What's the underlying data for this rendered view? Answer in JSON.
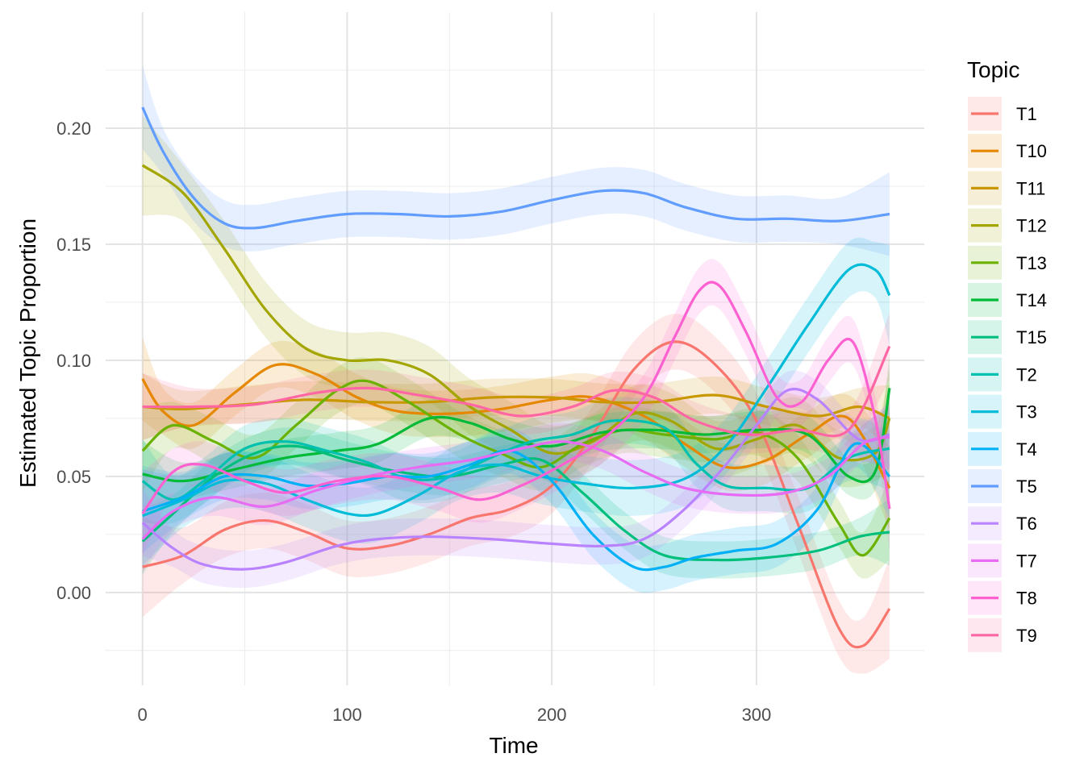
{
  "chart_data": {
    "type": "line",
    "xlabel": "Time",
    "ylabel": "Estimated Topic Proportion",
    "xlim": [
      -18,
      382
    ],
    "ylim": [
      -0.04,
      0.25
    ],
    "x_ticks": [
      0,
      100,
      200,
      300
    ],
    "x_tick_labels": [
      "0",
      "100",
      "200",
      "300"
    ],
    "y_ticks": [
      0.0,
      0.05,
      0.1,
      0.15,
      0.2
    ],
    "y_tick_labels": [
      "0.00",
      "0.05",
      "0.10",
      "0.15",
      "0.20"
    ],
    "grid": true,
    "legend": {
      "title": "Topic",
      "position": "right"
    },
    "band_opacity": 0.16,
    "series": [
      {
        "name": "T1",
        "color": "#F8766D",
        "band": 0.012,
        "points": [
          [
            0,
            0.011
          ],
          [
            20,
            0.016
          ],
          [
            40,
            0.027
          ],
          [
            60,
            0.031
          ],
          [
            80,
            0.026
          ],
          [
            100,
            0.019
          ],
          [
            120,
            0.02
          ],
          [
            140,
            0.025
          ],
          [
            160,
            0.032
          ],
          [
            180,
            0.036
          ],
          [
            200,
            0.046
          ],
          [
            220,
            0.068
          ],
          [
            240,
            0.096
          ],
          [
            260,
            0.108
          ],
          [
            280,
            0.098
          ],
          [
            300,
            0.074
          ],
          [
            320,
            0.03
          ],
          [
            340,
            -0.015
          ],
          [
            352,
            -0.023
          ],
          [
            365,
            -0.007
          ]
        ]
      },
      {
        "name": "T10",
        "color": "#E58700",
        "band": 0.01,
        "points": [
          [
            0,
            0.092
          ],
          [
            10,
            0.078
          ],
          [
            25,
            0.072
          ],
          [
            45,
            0.086
          ],
          [
            65,
            0.098
          ],
          [
            85,
            0.094
          ],
          [
            105,
            0.084
          ],
          [
            125,
            0.078
          ],
          [
            150,
            0.077
          ],
          [
            175,
            0.079
          ],
          [
            200,
            0.083
          ],
          [
            220,
            0.084
          ],
          [
            245,
            0.076
          ],
          [
            265,
            0.064
          ],
          [
            285,
            0.054
          ],
          [
            305,
            0.057
          ],
          [
            325,
            0.068
          ],
          [
            345,
            0.075
          ],
          [
            365,
            0.045
          ]
        ]
      },
      {
        "name": "T11",
        "color": "#C99800",
        "band": 0.008,
        "points": [
          [
            0,
            0.08
          ],
          [
            20,
            0.079
          ],
          [
            50,
            0.081
          ],
          [
            80,
            0.083
          ],
          [
            110,
            0.082
          ],
          [
            140,
            0.082
          ],
          [
            170,
            0.084
          ],
          [
            200,
            0.084
          ],
          [
            225,
            0.082
          ],
          [
            250,
            0.082
          ],
          [
            280,
            0.085
          ],
          [
            305,
            0.08
          ],
          [
            330,
            0.076
          ],
          [
            350,
            0.08
          ],
          [
            365,
            0.075
          ]
        ]
      },
      {
        "name": "T12",
        "color": "#A3A500",
        "band": 0.012,
        "points": [
          [
            0,
            0.184
          ],
          [
            20,
            0.172
          ],
          [
            40,
            0.148
          ],
          [
            60,
            0.122
          ],
          [
            80,
            0.105
          ],
          [
            100,
            0.1
          ],
          [
            120,
            0.1
          ],
          [
            140,
            0.094
          ],
          [
            160,
            0.08
          ],
          [
            180,
            0.07
          ],
          [
            200,
            0.06
          ],
          [
            220,
            0.065
          ],
          [
            240,
            0.077
          ],
          [
            258,
            0.074
          ],
          [
            280,
            0.062
          ],
          [
            300,
            0.066
          ],
          [
            320,
            0.072
          ],
          [
            340,
            0.058
          ],
          [
            358,
            0.06
          ],
          [
            365,
            0.075
          ]
        ]
      },
      {
        "name": "T13",
        "color": "#6BB100",
        "band": 0.01,
        "points": [
          [
            0,
            0.061
          ],
          [
            15,
            0.072
          ],
          [
            35,
            0.065
          ],
          [
            55,
            0.058
          ],
          [
            75,
            0.072
          ],
          [
            95,
            0.087
          ],
          [
            110,
            0.091
          ],
          [
            130,
            0.082
          ],
          [
            155,
            0.068
          ],
          [
            175,
            0.06
          ],
          [
            195,
            0.054
          ],
          [
            215,
            0.064
          ],
          [
            235,
            0.07
          ],
          [
            255,
            0.068
          ],
          [
            280,
            0.066
          ],
          [
            300,
            0.069
          ],
          [
            320,
            0.058
          ],
          [
            340,
            0.03
          ],
          [
            352,
            0.016
          ],
          [
            365,
            0.032
          ]
        ]
      },
      {
        "name": "T14",
        "color": "#00BA38",
        "band": 0.008,
        "points": [
          [
            0,
            0.051
          ],
          [
            20,
            0.048
          ],
          [
            45,
            0.053
          ],
          [
            70,
            0.058
          ],
          [
            95,
            0.061
          ],
          [
            115,
            0.064
          ],
          [
            140,
            0.075
          ],
          [
            160,
            0.073
          ],
          [
            180,
            0.066
          ],
          [
            200,
            0.063
          ],
          [
            225,
            0.069
          ],
          [
            250,
            0.07
          ],
          [
            275,
            0.068
          ],
          [
            300,
            0.07
          ],
          [
            325,
            0.068
          ],
          [
            345,
            0.05
          ],
          [
            358,
            0.052
          ],
          [
            365,
            0.088
          ]
        ]
      },
      {
        "name": "T15",
        "color": "#00BF7D",
        "band": 0.008,
        "points": [
          [
            0,
            0.022
          ],
          [
            15,
            0.034
          ],
          [
            35,
            0.05
          ],
          [
            55,
            0.06
          ],
          [
            75,
            0.063
          ],
          [
            100,
            0.057
          ],
          [
            125,
            0.052
          ],
          [
            150,
            0.05
          ],
          [
            175,
            0.055
          ],
          [
            195,
            0.057
          ],
          [
            215,
            0.043
          ],
          [
            235,
            0.027
          ],
          [
            255,
            0.016
          ],
          [
            280,
            0.014
          ],
          [
            305,
            0.015
          ],
          [
            330,
            0.018
          ],
          [
            350,
            0.024
          ],
          [
            365,
            0.026
          ]
        ]
      },
      {
        "name": "T2",
        "color": "#00C0AF",
        "band": 0.01,
        "points": [
          [
            0,
            0.048
          ],
          [
            15,
            0.04
          ],
          [
            30,
            0.048
          ],
          [
            50,
            0.062
          ],
          [
            70,
            0.065
          ],
          [
            90,
            0.061
          ],
          [
            110,
            0.056
          ],
          [
            130,
            0.049
          ],
          [
            150,
            0.05
          ],
          [
            170,
            0.058
          ],
          [
            190,
            0.065
          ],
          [
            210,
            0.068
          ],
          [
            230,
            0.074
          ],
          [
            255,
            0.071
          ],
          [
            270,
            0.056
          ],
          [
            285,
            0.046
          ],
          [
            305,
            0.045
          ],
          [
            325,
            0.045
          ],
          [
            345,
            0.058
          ],
          [
            365,
            0.062
          ]
        ]
      },
      {
        "name": "T3",
        "color": "#00BCD8",
        "band": 0.012,
        "points": [
          [
            0,
            0.033
          ],
          [
            20,
            0.04
          ],
          [
            40,
            0.048
          ],
          [
            60,
            0.047
          ],
          [
            80,
            0.04
          ],
          [
            100,
            0.034
          ],
          [
            115,
            0.034
          ],
          [
            135,
            0.042
          ],
          [
            155,
            0.052
          ],
          [
            175,
            0.055
          ],
          [
            195,
            0.05
          ],
          [
            215,
            0.047
          ],
          [
            240,
            0.045
          ],
          [
            265,
            0.049
          ],
          [
            285,
            0.063
          ],
          [
            305,
            0.088
          ],
          [
            325,
            0.115
          ],
          [
            345,
            0.139
          ],
          [
            358,
            0.139
          ],
          [
            365,
            0.128
          ]
        ]
      },
      {
        "name": "T4",
        "color": "#00B0F6",
        "band": 0.01,
        "points": [
          [
            0,
            0.035
          ],
          [
            20,
            0.041
          ],
          [
            40,
            0.05
          ],
          [
            60,
            0.05
          ],
          [
            80,
            0.046
          ],
          [
            100,
            0.047
          ],
          [
            120,
            0.05
          ],
          [
            140,
            0.05
          ],
          [
            160,
            0.055
          ],
          [
            180,
            0.061
          ],
          [
            200,
            0.048
          ],
          [
            220,
            0.025
          ],
          [
            240,
            0.011
          ],
          [
            255,
            0.011
          ],
          [
            270,
            0.015
          ],
          [
            290,
            0.018
          ],
          [
            310,
            0.021
          ],
          [
            330,
            0.036
          ],
          [
            348,
            0.064
          ],
          [
            365,
            0.05
          ]
        ]
      },
      {
        "name": "T5",
        "color": "#619CFF",
        "band": 0.01,
        "points": [
          [
            0,
            0.209
          ],
          [
            10,
            0.19
          ],
          [
            25,
            0.17
          ],
          [
            40,
            0.159
          ],
          [
            55,
            0.157
          ],
          [
            75,
            0.16
          ],
          [
            100,
            0.163
          ],
          [
            125,
            0.163
          ],
          [
            150,
            0.162
          ],
          [
            175,
            0.164
          ],
          [
            200,
            0.169
          ],
          [
            225,
            0.173
          ],
          [
            245,
            0.172
          ],
          [
            265,
            0.166
          ],
          [
            290,
            0.161
          ],
          [
            315,
            0.161
          ],
          [
            340,
            0.16
          ],
          [
            365,
            0.163
          ]
        ]
      },
      {
        "name": "T6",
        "color": "#B983FF",
        "band": 0.008,
        "points": [
          [
            0,
            0.03
          ],
          [
            15,
            0.019
          ],
          [
            30,
            0.012
          ],
          [
            50,
            0.01
          ],
          [
            70,
            0.013
          ],
          [
            95,
            0.02
          ],
          [
            115,
            0.023
          ],
          [
            140,
            0.024
          ],
          [
            170,
            0.023
          ],
          [
            200,
            0.021
          ],
          [
            225,
            0.02
          ],
          [
            245,
            0.023
          ],
          [
            265,
            0.036
          ],
          [
            285,
            0.055
          ],
          [
            300,
            0.072
          ],
          [
            315,
            0.087
          ],
          [
            330,
            0.083
          ],
          [
            350,
            0.066
          ],
          [
            365,
            0.068
          ]
        ]
      },
      {
        "name": "T7",
        "color": "#E76BF3",
        "band": 0.008,
        "points": [
          [
            0,
            0.023
          ],
          [
            15,
            0.035
          ],
          [
            35,
            0.041
          ],
          [
            60,
            0.037
          ],
          [
            85,
            0.044
          ],
          [
            110,
            0.05
          ],
          [
            135,
            0.054
          ],
          [
            160,
            0.057
          ],
          [
            185,
            0.062
          ],
          [
            205,
            0.065
          ],
          [
            225,
            0.061
          ],
          [
            245,
            0.052
          ],
          [
            265,
            0.045
          ],
          [
            290,
            0.042
          ],
          [
            315,
            0.043
          ],
          [
            335,
            0.05
          ],
          [
            352,
            0.064
          ],
          [
            365,
            0.067
          ]
        ]
      },
      {
        "name": "T8",
        "color": "#FD61D1",
        "band": 0.01,
        "points": [
          [
            0,
            0.034
          ],
          [
            15,
            0.052
          ],
          [
            30,
            0.055
          ],
          [
            50,
            0.048
          ],
          [
            70,
            0.043
          ],
          [
            95,
            0.048
          ],
          [
            120,
            0.05
          ],
          [
            145,
            0.045
          ],
          [
            165,
            0.04
          ],
          [
            185,
            0.046
          ],
          [
            205,
            0.055
          ],
          [
            225,
            0.066
          ],
          [
            245,
            0.084
          ],
          [
            260,
            0.11
          ],
          [
            272,
            0.13
          ],
          [
            282,
            0.132
          ],
          [
            295,
            0.112
          ],
          [
            310,
            0.084
          ],
          [
            322,
            0.082
          ],
          [
            335,
            0.1
          ],
          [
            347,
            0.108
          ],
          [
            358,
            0.075
          ],
          [
            365,
            0.036
          ]
        ]
      },
      {
        "name": "T9",
        "color": "#FF67A4",
        "band": 0.008,
        "points": [
          [
            0,
            0.08
          ],
          [
            25,
            0.08
          ],
          [
            55,
            0.081
          ],
          [
            85,
            0.086
          ],
          [
            110,
            0.088
          ],
          [
            135,
            0.085
          ],
          [
            160,
            0.081
          ],
          [
            185,
            0.076
          ],
          [
            210,
            0.08
          ],
          [
            230,
            0.087
          ],
          [
            250,
            0.084
          ],
          [
            270,
            0.074
          ],
          [
            295,
            0.068
          ],
          [
            320,
            0.07
          ],
          [
            345,
            0.07
          ],
          [
            365,
            0.106
          ]
        ]
      }
    ]
  }
}
